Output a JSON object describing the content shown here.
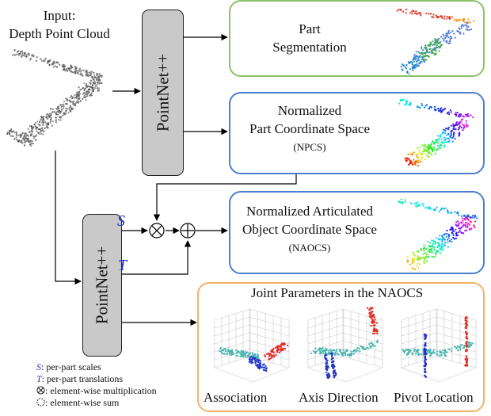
{
  "input": {
    "line1": "Input:",
    "line2": "Depth Point Cloud"
  },
  "pointnet_top": "PointNet++",
  "pointnet_bottom": "PointNet++",
  "boxes": {
    "seg": {
      "line1": "Part",
      "line2": "Segmentation"
    },
    "npcs": {
      "line1": "Normalized",
      "line2": "Part Coordinate Space",
      "abbr": "(NPCS)"
    },
    "naocs": {
      "line1": "Normalized Articulated",
      "line2": "Object Coordinate Space",
      "abbr": "(NAOCS)"
    },
    "joint": {
      "title": "Joint Parameters in the NAOCS",
      "captions": [
        "Association",
        "Axis Direction",
        "Pivot Location"
      ]
    }
  },
  "symbols": {
    "s": "S",
    "t": "T"
  },
  "legend": {
    "s_sym": "S",
    "s_text": ": per-part scales",
    "t_sym": "T",
    "t_text": ": per-part translations",
    "mult_text": ": element-wise multiplication",
    "sum_text": ": element-wise sum"
  },
  "colors": {
    "green": "#8dc26a",
    "blue": "#4e7fcf",
    "orange": "#f0b26a",
    "symbol": "#1a2fd1"
  }
}
